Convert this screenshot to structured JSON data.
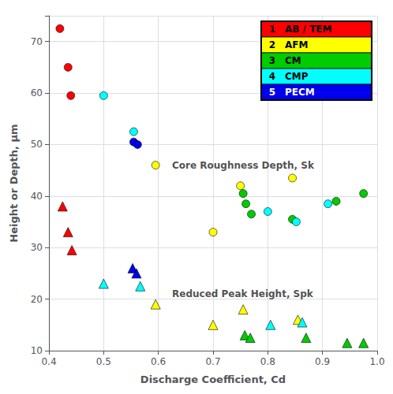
{
  "chart_data": {
    "type": "scatter",
    "xlabel": "Discharge Coefficient, Cd",
    "ylabel": "Height or Depth, μm",
    "xlim": [
      0.4,
      1.0
    ],
    "ylim": [
      10,
      75
    ],
    "xticks": [
      0.4,
      0.5,
      0.6,
      0.7,
      0.8,
      0.9,
      {
        "value": 1.0,
        "label": "1.0"
      }
    ],
    "yticks": [
      10,
      20,
      30,
      40,
      50,
      60,
      70
    ],
    "grid": true,
    "legend": "upper right",
    "annotations": [
      {
        "x": 0.625,
        "y": 46.0,
        "text": "Core Roughness Depth, Sk"
      },
      {
        "x": 0.625,
        "y": 21.0,
        "text": "Reduced Peak Height, Spk"
      }
    ],
    "legend_entries": [
      {
        "number": "1",
        "label": "AB / TEM",
        "color": "#FF0000",
        "text_color": "black"
      },
      {
        "number": "2",
        "label": "AFM",
        "color": "#FFFF00",
        "text_color": "black"
      },
      {
        "number": "3",
        "label": "CM",
        "color": "#00CC00",
        "text_color": "black"
      },
      {
        "number": "4",
        "label": "CMP",
        "color": "#00FFFF",
        "text_color": "black"
      },
      {
        "number": "5",
        "label": "PECM",
        "color": "#0000EE",
        "text_color": "white"
      }
    ],
    "series": [
      {
        "marker": "circle",
        "x": [
          0.42,
          0.435,
          0.44,
          0.5,
          0.555,
          0.555,
          0.562,
          0.595,
          0.7,
          0.75,
          0.755,
          0.76,
          0.77,
          0.8,
          0.845,
          0.845,
          0.852,
          0.91,
          0.925,
          0.975
        ],
        "values": [
          72.5,
          65.0,
          59.5,
          59.5,
          52.5,
          50.5,
          50.0,
          46.0,
          33.0,
          42.0,
          40.5,
          38.5,
          36.5,
          37.0,
          43.5,
          35.5,
          35.0,
          38.5,
          39.0,
          40.5
        ],
        "colors": [
          "#FF0000",
          "#FF0000",
          "#FF0000",
          "#00FFFF",
          "#00FFFF",
          "#0000EE",
          "#0000EE",
          "#FFFF00",
          "#FFFF00",
          "#FFFF00",
          "#00CC00",
          "#00CC00",
          "#00CC00",
          "#00FFFF",
          "#FFFF00",
          "#00CC00",
          "#00FFFF",
          "#00FFFF",
          "#00CC00",
          "#00CC00"
        ]
      },
      {
        "marker": "triangle",
        "x": [
          0.425,
          0.435,
          0.442,
          0.5,
          0.553,
          0.56,
          0.567,
          0.595,
          0.7,
          0.755,
          0.758,
          0.768,
          0.805,
          0.855,
          0.863,
          0.87,
          0.945,
          0.975
        ],
        "values": [
          38.0,
          33.0,
          29.5,
          23.0,
          26.0,
          25.0,
          22.5,
          19.0,
          15.0,
          18.0,
          13.0,
          12.5,
          15.0,
          16.0,
          15.5,
          12.5,
          11.5,
          11.5
        ],
        "colors": [
          "#FF0000",
          "#FF0000",
          "#FF0000",
          "#00FFFF",
          "#0000EE",
          "#0000EE",
          "#00FFFF",
          "#FFFF00",
          "#FFFF00",
          "#FFFF00",
          "#00CC00",
          "#00CC00",
          "#00FFFF",
          "#FFFF00",
          "#00FFFF",
          "#00CC00",
          "#00CC00",
          "#00CC00"
        ]
      }
    ]
  }
}
